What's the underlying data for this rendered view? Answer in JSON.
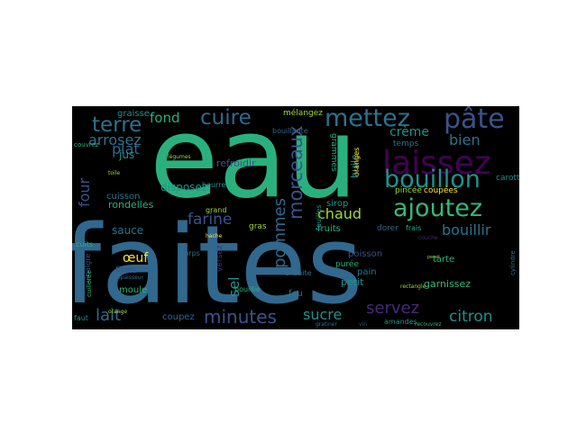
{
  "colors": {
    "background": "#000000",
    "palette": [
      "#3b528b",
      "#21918c",
      "#5ec962",
      "#fde725",
      "#440154",
      "#2c728e",
      "#2ab07f",
      "#482878",
      "#35b779",
      "#31688e",
      "#443983",
      "#9fda3a"
    ]
  },
  "words": [
    {
      "text": "eau"
    },
    {
      "text": "faites"
    },
    {
      "text": "laissez"
    },
    {
      "text": "mettez"
    },
    {
      "text": "pâte"
    },
    {
      "text": "bouillon"
    },
    {
      "text": "ajoutez"
    },
    {
      "text": "cuire"
    },
    {
      "text": "terre"
    },
    {
      "text": "morceaux"
    },
    {
      "text": "bien"
    },
    {
      "text": "pommes"
    },
    {
      "text": "minutes"
    },
    {
      "text": "lait"
    },
    {
      "text": "farine"
    },
    {
      "text": "servez"
    },
    {
      "text": "citron"
    },
    {
      "text": "sucre"
    },
    {
      "text": "chaud"
    },
    {
      "text": "bouillir"
    },
    {
      "text": "arrosez"
    },
    {
      "text": "four"
    },
    {
      "text": "plat"
    },
    {
      "text": "crème"
    },
    {
      "text": "fond"
    },
    {
      "text": "sel"
    },
    {
      "text": "œuf"
    },
    {
      "text": "disposez"
    },
    {
      "text": "jus"
    },
    {
      "text": "sauce"
    },
    {
      "text": "mélangez"
    },
    {
      "text": "refroidir"
    },
    {
      "text": "cuisson"
    },
    {
      "text": "rondelles"
    },
    {
      "text": "garnissez"
    },
    {
      "text": "petit"
    },
    {
      "text": "poisson"
    },
    {
      "text": "tarte"
    },
    {
      "text": "pain"
    },
    {
      "text": "fruits"
    },
    {
      "text": "dorer"
    },
    {
      "text": "carottes"
    },
    {
      "text": "pincée"
    },
    {
      "text": "coupées"
    },
    {
      "text": "grammes"
    },
    {
      "text": "huile"
    },
    {
      "text": "sirop"
    },
    {
      "text": "graisse"
    },
    {
      "text": "temps"
    },
    {
      "text": "coupez"
    },
    {
      "text": "feu"
    },
    {
      "text": "moule"
    },
    {
      "text": "fines"
    },
    {
      "text": "versez"
    },
    {
      "text": "purée"
    },
    {
      "text": "ensuite"
    },
    {
      "text": "gras"
    },
    {
      "text": "frais"
    },
    {
      "text": "feuilles"
    },
    {
      "text": "bouillante"
    },
    {
      "text": "beurre"
    },
    {
      "text": "grand"
    },
    {
      "text": "corps"
    },
    {
      "text": "bouillie"
    },
    {
      "text": "cuits"
    },
    {
      "text": "vinaigre"
    },
    {
      "text": "faut"
    },
    {
      "text": "amandes"
    },
    {
      "text": "cylindre"
    },
    {
      "text": "couvrez"
    },
    {
      "text": "toile"
    },
    {
      "text": "oranges"
    },
    {
      "text": "légumes"
    },
    {
      "text": "vin"
    },
    {
      "text": "cuillerée"
    },
    {
      "text": "hache"
    },
    {
      "text": "épaisseur"
    },
    {
      "text": "rectangle"
    },
    {
      "text": "couche"
    },
    {
      "text": "gratiner"
    },
    {
      "text": "recouvrez"
    },
    {
      "text": "orange"
    },
    {
      "text": "persil"
    }
  ]
}
